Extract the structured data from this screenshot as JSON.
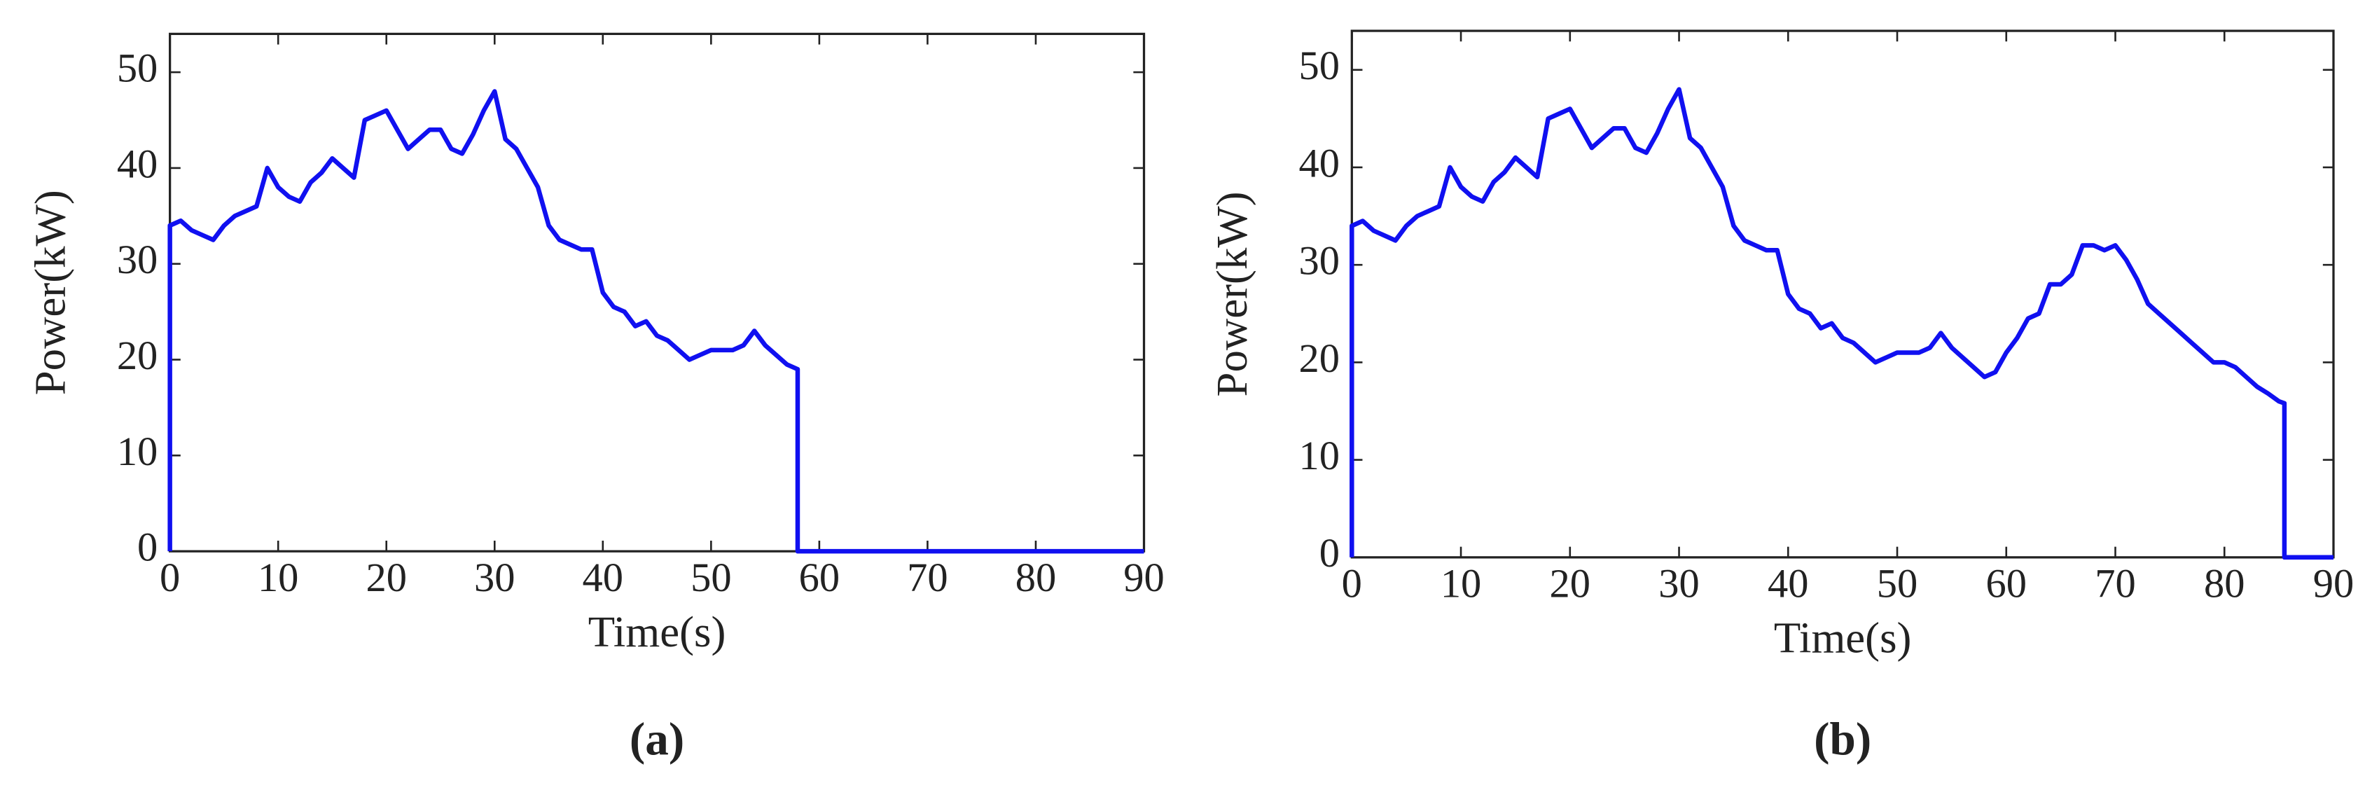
{
  "chart_data": [
    {
      "type": "line",
      "x_label": "Time(s)",
      "y_label": "Power(kW)",
      "caption": "(a)",
      "color": "#1010f0",
      "xlim": [
        0,
        90
      ],
      "ylim": [
        0,
        54
      ],
      "xticks": [
        0,
        10,
        20,
        30,
        40,
        50,
        60,
        70,
        80,
        90
      ],
      "yticks": [
        0,
        10,
        20,
        30,
        40,
        50
      ],
      "x": [
        0,
        0,
        1,
        2,
        3,
        4,
        5,
        6,
        7,
        8,
        9,
        10,
        11,
        12,
        13,
        14,
        15,
        16,
        17,
        18,
        19,
        20,
        21,
        22,
        23,
        24,
        25,
        26,
        27,
        28,
        29,
        30,
        31,
        32,
        33,
        34,
        35,
        36,
        37,
        38,
        39,
        40,
        41,
        42,
        43,
        44,
        45,
        46,
        47,
        48,
        49,
        50,
        51,
        52,
        53,
        54,
        55,
        56,
        57,
        58,
        58,
        90
      ],
      "values": [
        0,
        34,
        34.5,
        33.5,
        33,
        32.5,
        34,
        35,
        35.5,
        36,
        40,
        38,
        37,
        36.5,
        38.5,
        39.5,
        41,
        40,
        39,
        45,
        45.5,
        46,
        44,
        42,
        43,
        44,
        44,
        42,
        41.5,
        43.5,
        46,
        48,
        43,
        42,
        40,
        38,
        34,
        32.5,
        32,
        31.5,
        31.5,
        27,
        25.5,
        25,
        23.5,
        24,
        22.5,
        22,
        21,
        20,
        20.5,
        21,
        21,
        21,
        21.5,
        23,
        21.5,
        20.5,
        19.5,
        19,
        0,
        0
      ]
    },
    {
      "type": "line",
      "x_label": "Time(s)",
      "y_label": "Power(kW)",
      "caption": "(b)",
      "color": "#1010f0",
      "xlim": [
        0,
        90
      ],
      "ylim": [
        0,
        54
      ],
      "xticks": [
        0,
        10,
        20,
        30,
        40,
        50,
        60,
        70,
        80,
        90
      ],
      "yticks": [
        0,
        10,
        20,
        30,
        40,
        50
      ],
      "x": [
        0,
        0,
        1,
        2,
        3,
        4,
        5,
        6,
        7,
        8,
        9,
        10,
        11,
        12,
        13,
        14,
        15,
        16,
        17,
        18,
        19,
        20,
        21,
        22,
        23,
        24,
        25,
        26,
        27,
        28,
        29,
        30,
        31,
        32,
        33,
        34,
        35,
        36,
        37,
        38,
        39,
        40,
        41,
        42,
        43,
        44,
        45,
        46,
        47,
        48,
        49,
        50,
        51,
        52,
        53,
        54,
        55,
        56,
        57,
        58,
        59,
        60,
        61,
        62,
        63,
        64,
        65,
        66,
        67,
        68,
        69,
        70,
        71,
        72,
        73,
        74,
        75,
        76,
        77,
        78,
        79,
        80,
        81,
        82,
        83,
        84,
        85,
        85.5,
        85.5,
        90
      ],
      "values": [
        0,
        34,
        34.5,
        33.5,
        33,
        32.5,
        34,
        35,
        35.5,
        36,
        40,
        38,
        37,
        36.5,
        38.5,
        39.5,
        41,
        40,
        39,
        45,
        45.5,
        46,
        44,
        42,
        43,
        44,
        44,
        42,
        41.5,
        43.5,
        46,
        48,
        43,
        42,
        40,
        38,
        34,
        32.5,
        32,
        31.5,
        31.5,
        27,
        25.5,
        25,
        23.5,
        24,
        22.5,
        22,
        21,
        20,
        20.5,
        21,
        21,
        21,
        21.5,
        23,
        21.5,
        20.5,
        19.5,
        18.5,
        19,
        21,
        22.5,
        24.5,
        25,
        28,
        28,
        29,
        32,
        32,
        31.5,
        32,
        30.5,
        28.5,
        26,
        25,
        24,
        23,
        22,
        21,
        20,
        20,
        19.5,
        18.5,
        17.5,
        16.8,
        16,
        15.8,
        0,
        0
      ]
    }
  ]
}
